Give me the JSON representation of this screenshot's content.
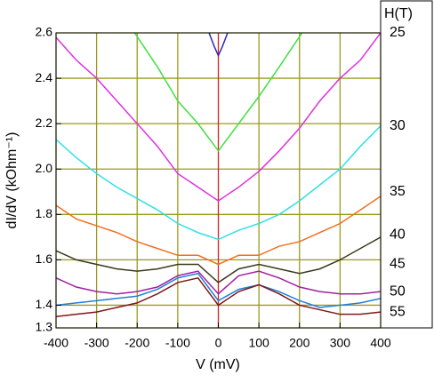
{
  "chart_data": {
    "type": "line",
    "xlabel": "V (mV)",
    "ylabel": "dI/dV (kOhm⁻¹)",
    "xlim": [
      -400,
      400
    ],
    "xticks": [
      -400,
      -300,
      -200,
      -100,
      0,
      100,
      200,
      300,
      400
    ],
    "ylim": [
      1.3,
      2.6
    ],
    "yticks": [
      1.3,
      1.4,
      1.6,
      1.8,
      {
        "value": 2,
        "label": "2.0"
      },
      2.2,
      2.4,
      2.6
    ],
    "grid": true,
    "annotation_title": "H(T)",
    "annotations": [
      {
        "text": "25",
        "y": 2.6
      },
      {
        "text": "30",
        "y": 2.19
      },
      {
        "text": "35",
        "y": 1.9
      },
      {
        "text": "40",
        "y": 1.71
      },
      {
        "text": "45",
        "y": 1.58
      },
      {
        "text": "50",
        "y": 1.46
      },
      {
        "text": "55",
        "y": 1.37
      }
    ],
    "series": [
      {
        "color": "#2a2ab8",
        "x": [
          -25,
          -10,
          0,
          10,
          25
        ],
        "values": [
          2.61,
          2.54,
          2.5,
          2.54,
          2.61
        ]
      },
      {
        "color": "#3ee03e",
        "x": [
          -210,
          -150,
          -100,
          -50,
          0,
          50,
          100,
          150,
          210
        ],
        "values": [
          2.61,
          2.45,
          2.3,
          2.2,
          2.08,
          2.2,
          2.32,
          2.45,
          2.61
        ]
      },
      {
        "color": "#e030e0",
        "x": [
          -400,
          -350,
          -300,
          -250,
          -200,
          -150,
          -100,
          -50,
          0,
          50,
          100,
          150,
          200,
          250,
          300,
          350,
          400
        ],
        "values": [
          2.58,
          2.48,
          2.4,
          2.3,
          2.2,
          2.1,
          1.98,
          1.92,
          1.86,
          1.92,
          1.99,
          2.08,
          2.18,
          2.3,
          2.4,
          2.48,
          2.6
        ]
      },
      {
        "color": "#30e0e8",
        "x": [
          -400,
          -350,
          -300,
          -250,
          -200,
          -150,
          -100,
          -50,
          0,
          50,
          100,
          150,
          200,
          250,
          300,
          350,
          400
        ],
        "values": [
          2.13,
          2.05,
          1.98,
          1.92,
          1.87,
          1.82,
          1.76,
          1.72,
          1.69,
          1.73,
          1.76,
          1.8,
          1.86,
          1.93,
          2.0,
          2.1,
          2.19
        ]
      },
      {
        "color": "#f07020",
        "x": [
          -400,
          -350,
          -300,
          -250,
          -200,
          -150,
          -100,
          -50,
          0,
          50,
          100,
          150,
          200,
          250,
          300,
          350,
          400
        ],
        "values": [
          1.84,
          1.78,
          1.75,
          1.72,
          1.68,
          1.65,
          1.62,
          1.62,
          1.58,
          1.62,
          1.62,
          1.66,
          1.68,
          1.72,
          1.76,
          1.82,
          1.88
        ]
      },
      {
        "color": "#3a3a20",
        "x": [
          -400,
          -350,
          -300,
          -250,
          -200,
          -150,
          -100,
          -50,
          0,
          50,
          100,
          150,
          200,
          250,
          300,
          350,
          400
        ],
        "values": [
          1.64,
          1.6,
          1.58,
          1.56,
          1.55,
          1.56,
          1.58,
          1.58,
          1.5,
          1.56,
          1.58,
          1.56,
          1.54,
          1.56,
          1.6,
          1.65,
          1.7
        ]
      },
      {
        "color": "#a020a0",
        "x": [
          -400,
          -350,
          -300,
          -250,
          -200,
          -150,
          -100,
          -50,
          0,
          50,
          100,
          150,
          200,
          250,
          300,
          350,
          400
        ],
        "values": [
          1.52,
          1.48,
          1.46,
          1.45,
          1.46,
          1.48,
          1.53,
          1.55,
          1.45,
          1.53,
          1.55,
          1.52,
          1.48,
          1.46,
          1.45,
          1.45,
          1.46
        ]
      },
      {
        "color": "#2080d8",
        "x": [
          -400,
          -350,
          -300,
          -250,
          -200,
          -150,
          -100,
          -50,
          0,
          50,
          100,
          150,
          200,
          250,
          300,
          350,
          400
        ],
        "values": [
          1.4,
          1.41,
          1.42,
          1.43,
          1.44,
          1.47,
          1.52,
          1.54,
          1.42,
          1.47,
          1.49,
          1.46,
          1.42,
          1.39,
          1.4,
          1.41,
          1.43
        ]
      },
      {
        "color": "#801818",
        "x": [
          -400,
          -350,
          -300,
          -250,
          -200,
          -150,
          -100,
          -50,
          0,
          50,
          100,
          150,
          200,
          250,
          300,
          350,
          400
        ],
        "values": [
          1.35,
          1.36,
          1.37,
          1.39,
          1.41,
          1.45,
          1.5,
          1.52,
          1.4,
          1.46,
          1.49,
          1.45,
          1.4,
          1.38,
          1.36,
          1.36,
          1.37
        ]
      }
    ]
  }
}
